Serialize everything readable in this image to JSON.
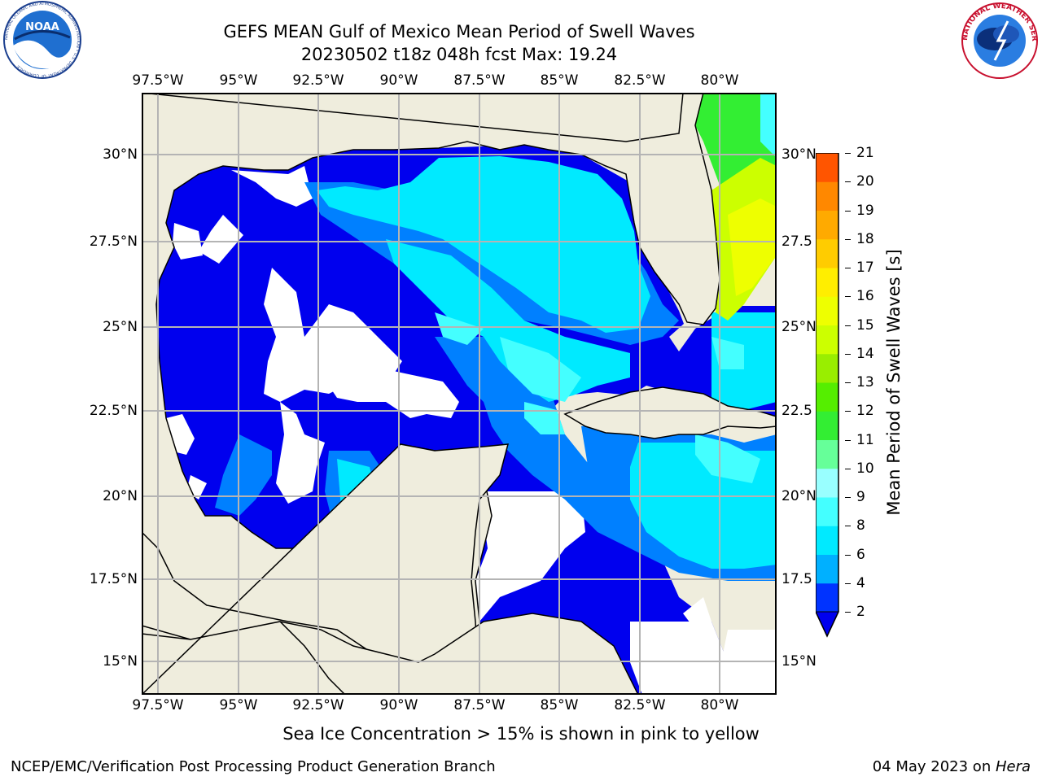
{
  "title_line1": "GEFS MEAN Gulf of Mexico Mean Period of Swell Waves",
  "title_line2": "20230502 t18z 048h fcst   Max: 19.24",
  "lon_ticks": [
    "97.5°W",
    "95°W",
    "92.5°W",
    "90°W",
    "87.5°W",
    "85°W",
    "82.5°W",
    "80°W"
  ],
  "lat_ticks_left": [
    "30°N",
    "27.5°N",
    "25°N",
    "22.5°N",
    "20°N",
    "17.5°N",
    "15°N"
  ],
  "lat_ticks_right": [
    "30°N",
    "27.5",
    "25°N",
    "22.5",
    "20°N",
    "17.5",
    "15°N"
  ],
  "colorbar": {
    "label": "Mean Period of Swell Waves [s]",
    "ticks": [
      "2",
      "4",
      "6",
      "8",
      "9",
      "10",
      "11",
      "12",
      "13",
      "14",
      "15",
      "16",
      "17",
      "18",
      "19",
      "20",
      "21"
    ],
    "colors": [
      "#0033ff",
      "#00b0ff",
      "#00eaff",
      "#44ffff",
      "#99ffff",
      "#66ff99",
      "#33ee33",
      "#55ee00",
      "#99ee00",
      "#ccff00",
      "#eeff00",
      "#ffee00",
      "#ffcc00",
      "#ffaa00",
      "#ff8800",
      "#ff5500",
      "#ff2a00",
      "#ff0000"
    ],
    "extend_color": "#0000ee"
  },
  "ice_note": "Sea Ice Concentration > 15% is shown in pink to yellow",
  "footer_left": "NCEP/EMC/Verification Post Processing Product Generation Branch",
  "footer_right_date": "04 May 2023 on ",
  "footer_right_host": "Hera",
  "logos": {
    "noaa_text": "NOAA",
    "noaa_ring": "NATIONAL OCEANIC AND ATMOSPHERIC ADMINISTRATION • U.S. DEPARTMENT OF COMMERCE",
    "nws_ring": "NATIONAL WEATHER SERVICE"
  },
  "colors": {
    "land": "#efeddd",
    "ocean_low": "#0000ee",
    "grid": "#b4b4b4"
  }
}
